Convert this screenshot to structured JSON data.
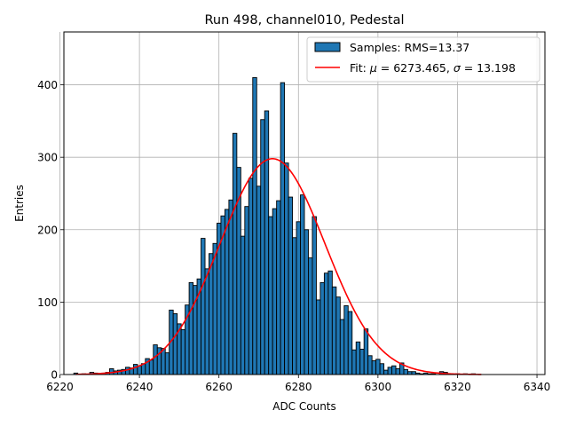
{
  "chart_data": {
    "type": "bar",
    "title": "Run 498, channel010, Pedestal",
    "xlabel": "ADC Counts",
    "ylabel": "Entries",
    "xlim": [
      6221,
      6342
    ],
    "ylim": [
      0,
      473
    ],
    "xticks": [
      6220,
      6240,
      6260,
      6280,
      6300,
      6320,
      6340
    ],
    "yticks": [
      0,
      100,
      200,
      300,
      400
    ],
    "grid": true,
    "legend_position": "top-right",
    "bar_color": "#1f77b4",
    "bar_edge_color": "#000000",
    "fit_color": "#ff0000",
    "histogram": {
      "name": "Samples: RMS=13.37",
      "bins": [
        {
          "x": 6224,
          "y": 2
        },
        {
          "x": 6225,
          "y": 0
        },
        {
          "x": 6226,
          "y": 1
        },
        {
          "x": 6227,
          "y": 0
        },
        {
          "x": 6228,
          "y": 3
        },
        {
          "x": 6229,
          "y": 2
        },
        {
          "x": 6230,
          "y": 1
        },
        {
          "x": 6231,
          "y": 2
        },
        {
          "x": 6232,
          "y": 3
        },
        {
          "x": 6233,
          "y": 8
        },
        {
          "x": 6234,
          "y": 5
        },
        {
          "x": 6235,
          "y": 6
        },
        {
          "x": 6236,
          "y": 7
        },
        {
          "x": 6237,
          "y": 10
        },
        {
          "x": 6238,
          "y": 9
        },
        {
          "x": 6239,
          "y": 14
        },
        {
          "x": 6240,
          "y": 12
        },
        {
          "x": 6241,
          "y": 15
        },
        {
          "x": 6242,
          "y": 22
        },
        {
          "x": 6243,
          "y": 20
        },
        {
          "x": 6244,
          "y": 41
        },
        {
          "x": 6245,
          "y": 37
        },
        {
          "x": 6246,
          "y": 36
        },
        {
          "x": 6247,
          "y": 30
        },
        {
          "x": 6248,
          "y": 89
        },
        {
          "x": 6249,
          "y": 84
        },
        {
          "x": 6250,
          "y": 70
        },
        {
          "x": 6251,
          "y": 62
        },
        {
          "x": 6252,
          "y": 96
        },
        {
          "x": 6253,
          "y": 127
        },
        {
          "x": 6254,
          "y": 123
        },
        {
          "x": 6255,
          "y": 132
        },
        {
          "x": 6256,
          "y": 188
        },
        {
          "x": 6257,
          "y": 146
        },
        {
          "x": 6258,
          "y": 167
        },
        {
          "x": 6259,
          "y": 181
        },
        {
          "x": 6260,
          "y": 209
        },
        {
          "x": 6261,
          "y": 219
        },
        {
          "x": 6262,
          "y": 228
        },
        {
          "x": 6263,
          "y": 241
        },
        {
          "x": 6264,
          "y": 333
        },
        {
          "x": 6265,
          "y": 286
        },
        {
          "x": 6266,
          "y": 191
        },
        {
          "x": 6267,
          "y": 232
        },
        {
          "x": 6268,
          "y": 271
        },
        {
          "x": 6269,
          "y": 410
        },
        {
          "x": 6270,
          "y": 260
        },
        {
          "x": 6271,
          "y": 352
        },
        {
          "x": 6272,
          "y": 364
        },
        {
          "x": 6273,
          "y": 218
        },
        {
          "x": 6274,
          "y": 229
        },
        {
          "x": 6275,
          "y": 240
        },
        {
          "x": 6276,
          "y": 403
        },
        {
          "x": 6277,
          "y": 292
        },
        {
          "x": 6278,
          "y": 245
        },
        {
          "x": 6279,
          "y": 189
        },
        {
          "x": 6280,
          "y": 211
        },
        {
          "x": 6281,
          "y": 248
        },
        {
          "x": 6282,
          "y": 200
        },
        {
          "x": 6283,
          "y": 161
        },
        {
          "x": 6284,
          "y": 218
        },
        {
          "x": 6285,
          "y": 103
        },
        {
          "x": 6286,
          "y": 127
        },
        {
          "x": 6287,
          "y": 140
        },
        {
          "x": 6288,
          "y": 143
        },
        {
          "x": 6289,
          "y": 121
        },
        {
          "x": 6290,
          "y": 107
        },
        {
          "x": 6291,
          "y": 76
        },
        {
          "x": 6292,
          "y": 95
        },
        {
          "x": 6293,
          "y": 87
        },
        {
          "x": 6294,
          "y": 34
        },
        {
          "x": 6295,
          "y": 45
        },
        {
          "x": 6296,
          "y": 35
        },
        {
          "x": 6297,
          "y": 63
        },
        {
          "x": 6298,
          "y": 26
        },
        {
          "x": 6299,
          "y": 19
        },
        {
          "x": 6300,
          "y": 21
        },
        {
          "x": 6301,
          "y": 15
        },
        {
          "x": 6302,
          "y": 6
        },
        {
          "x": 6303,
          "y": 10
        },
        {
          "x": 6304,
          "y": 12
        },
        {
          "x": 6305,
          "y": 8
        },
        {
          "x": 6306,
          "y": 16
        },
        {
          "x": 6307,
          "y": 7
        },
        {
          "x": 6308,
          "y": 4
        },
        {
          "x": 6309,
          "y": 4
        },
        {
          "x": 6310,
          "y": 2
        },
        {
          "x": 6311,
          "y": 1
        },
        {
          "x": 6312,
          "y": 2
        },
        {
          "x": 6313,
          "y": 1
        },
        {
          "x": 6314,
          "y": 1
        },
        {
          "x": 6315,
          "y": 0
        },
        {
          "x": 6316,
          "y": 4
        },
        {
          "x": 6317,
          "y": 3
        },
        {
          "x": 6318,
          "y": 1
        },
        {
          "x": 6319,
          "y": 0
        },
        {
          "x": 6320,
          "y": 1
        },
        {
          "x": 6321,
          "y": 0
        },
        {
          "x": 6322,
          "y": 1
        },
        {
          "x": 6323,
          "y": 0
        },
        {
          "x": 6324,
          "y": 1
        }
      ]
    },
    "fit": {
      "name_prefix": "Fit: ",
      "mu_symbol": "μ",
      "mu_text": " = 6273.465, ",
      "sigma_symbol": "σ",
      "sigma_text": " = 13.198",
      "mu": 6273.465,
      "sigma": 13.198,
      "amplitude": 298,
      "x_range": [
        6224,
        6326
      ]
    }
  }
}
